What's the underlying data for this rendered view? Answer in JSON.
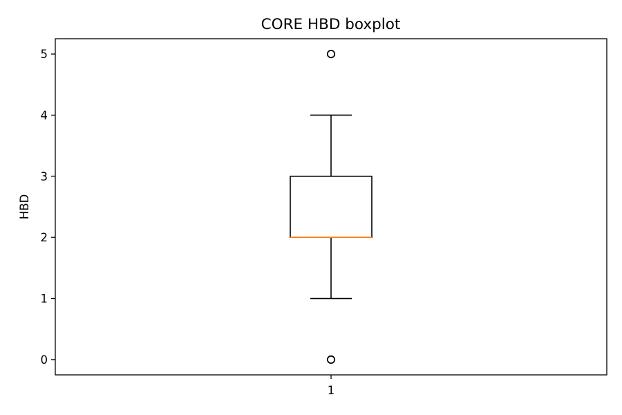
{
  "chart_data": {
    "type": "boxplot",
    "title": "CORE HBD boxplot",
    "xlabel": "",
    "ylabel": "HBD",
    "categories": [
      "1"
    ],
    "ylim": [
      -0.25,
      5.25
    ],
    "yticks": [
      0,
      1,
      2,
      3,
      4,
      5
    ],
    "grid": false,
    "boxes": [
      {
        "category": "1",
        "whisker_low": 1,
        "q1": 2,
        "median": 2,
        "q3": 3,
        "whisker_high": 4,
        "outliers": [
          5,
          0
        ]
      }
    ],
    "colors": {
      "box": "#000000",
      "median": "#ff7f0e",
      "outlier": "#000000"
    }
  }
}
